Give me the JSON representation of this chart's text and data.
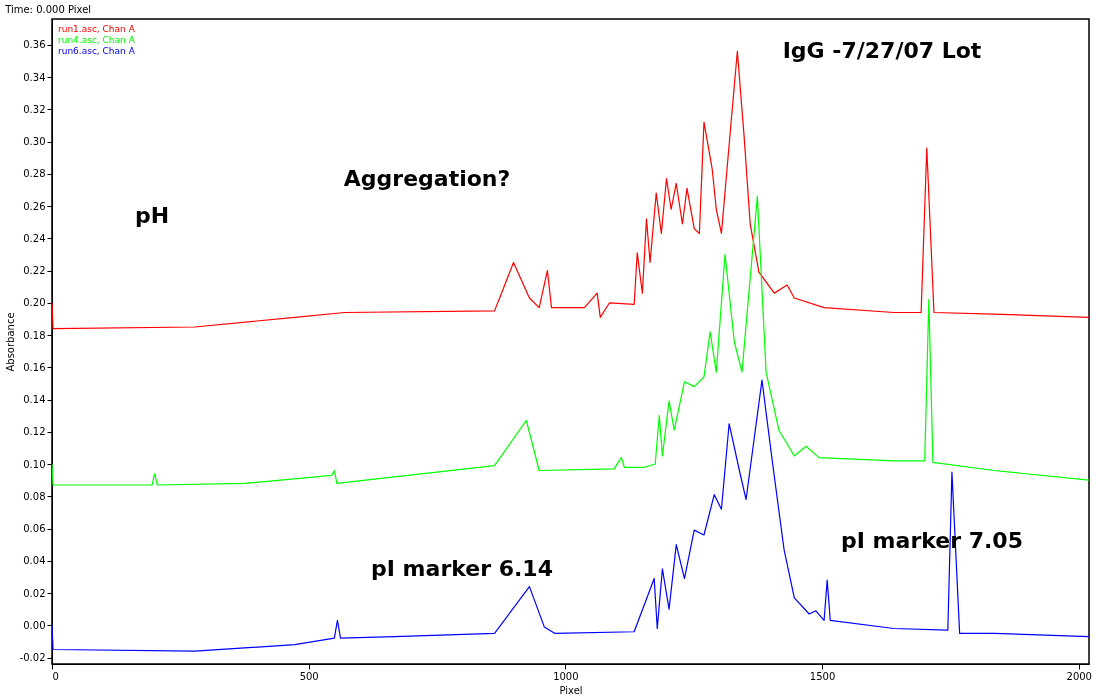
{
  "chart_data": {
    "type": "line",
    "title": "Time:  0.000  Pixel",
    "xlabel": "Pixel",
    "ylabel": "Absorbance",
    "xlim": [
      0,
      2020
    ],
    "ylim": [
      -0.024,
      0.376
    ],
    "xticks": [
      0,
      500,
      1000,
      1500,
      2000
    ],
    "yticks": [
      {
        "value": -0.02,
        "label": "-0.02"
      },
      {
        "value": 0,
        "label": "0.00"
      },
      {
        "value": 0.02,
        "label": "0.02"
      },
      {
        "value": 0.04,
        "label": "0.04"
      },
      {
        "value": 0.06,
        "label": "0.06"
      },
      {
        "value": 0.08,
        "label": "0.08"
      },
      {
        "value": 0.1,
        "label": "0.10"
      },
      {
        "value": 0.12,
        "label": "0.12"
      },
      {
        "value": 0.14,
        "label": "0.14"
      },
      {
        "value": 0.16,
        "label": "0.16"
      },
      {
        "value": 0.18,
        "label": "0.18"
      },
      {
        "value": 0.2,
        "label": "0.20"
      },
      {
        "value": 0.22,
        "label": "0.22"
      },
      {
        "value": 0.24,
        "label": "0.24"
      },
      {
        "value": 0.26,
        "label": "0.26"
      },
      {
        "value": 0.28,
        "label": "0.28"
      },
      {
        "value": 0.3,
        "label": "0.30"
      },
      {
        "value": 0.32,
        "label": "0.32"
      },
      {
        "value": 0.34,
        "label": "0.34"
      },
      {
        "value": 0.36,
        "label": "0.36"
      }
    ],
    "grid": false,
    "legend": "top left",
    "marker": "none",
    "line_style": "solid",
    "series": [
      {
        "name": "run1.asc, Chan A",
        "color": "#ff0000",
        "x": [
          0,
          2,
          278,
          473,
          570,
          862,
          872,
          899,
          930,
          949,
          965,
          973,
          1037,
          1062,
          1068,
          1086,
          1134,
          1140,
          1150,
          1158,
          1165,
          1177,
          1187,
          1197,
          1206,
          1216,
          1228,
          1237,
          1251,
          1261,
          1270,
          1286,
          1294,
          1304,
          1319,
          1335,
          1348,
          1360,
          1377,
          1407,
          1432,
          1446,
          1504,
          1640,
          1693,
          1704,
          1718,
          1835,
          2020
        ],
        "values": [
          0.2,
          0.184,
          0.185,
          0.191,
          0.194,
          0.195,
          0.203,
          0.225,
          0.203,
          0.197,
          0.22,
          0.197,
          0.197,
          0.206,
          0.191,
          0.2,
          0.199,
          0.231,
          0.206,
          0.252,
          0.225,
          0.268,
          0.243,
          0.277,
          0.258,
          0.274,
          0.249,
          0.271,
          0.246,
          0.243,
          0.312,
          0.283,
          0.258,
          0.243,
          0.298,
          0.356,
          0.304,
          0.249,
          0.219,
          0.206,
          0.211,
          0.203,
          0.197,
          0.194,
          0.194,
          0.296,
          0.194,
          0.193,
          0.191
        ]
      },
      {
        "name": "run4.asc, Chan A",
        "color": "#00ff00",
        "x": [
          0,
          2,
          195,
          200,
          205,
          375,
          545,
          550,
          555,
          862,
          924,
          949,
          1095,
          1109,
          1115,
          1154,
          1175,
          1183,
          1189,
          1202,
          1212,
          1232,
          1251,
          1270,
          1282,
          1294,
          1311,
          1329,
          1344,
          1374,
          1391,
          1416,
          1446,
          1469,
          1494,
          1640,
          1700,
          1708,
          1716,
          1835,
          2020
        ],
        "values": [
          0.1,
          0.087,
          0.087,
          0.094,
          0.087,
          0.088,
          0.093,
          0.096,
          0.088,
          0.099,
          0.127,
          0.096,
          0.097,
          0.104,
          0.098,
          0.098,
          0.1,
          0.13,
          0.105,
          0.139,
          0.121,
          0.151,
          0.148,
          0.154,
          0.182,
          0.157,
          0.23,
          0.176,
          0.157,
          0.266,
          0.157,
          0.121,
          0.105,
          0.111,
          0.104,
          0.102,
          0.102,
          0.202,
          0.101,
          0.096,
          0.09
        ]
      },
      {
        "name": "run6.asc, Chan A",
        "color": "#0000ff",
        "x": [
          0,
          2,
          278,
          473,
          550,
          556,
          562,
          667,
          862,
          930,
          959,
          979,
          1134,
          1173,
          1179,
          1189,
          1202,
          1216,
          1232,
          1251,
          1270,
          1290,
          1304,
          1319,
          1339,
          1352,
          1383,
          1403,
          1426,
          1446,
          1475,
          1488,
          1504,
          1510,
          1516,
          1640,
          1745,
          1753,
          1768,
          1835,
          2020
        ],
        "values": [
          0,
          -0.015,
          -0.016,
          -0.012,
          -0.008,
          0.003,
          -0.008,
          -0.007,
          -0.005,
          0.024,
          -0.001,
          -0.005,
          -0.004,
          0.029,
          -0.002,
          0.035,
          0.01,
          0.05,
          0.029,
          0.059,
          0.056,
          0.081,
          0.072,
          0.125,
          0.096,
          0.078,
          0.152,
          0.102,
          0.047,
          0.017,
          0.007,
          0.009,
          0.003,
          0.028,
          0.003,
          -0.002,
          -0.003,
          0.095,
          -0.005,
          -0.005,
          -0.007
        ]
      }
    ],
    "annotations": [
      "pH",
      "Aggregation?",
      "IgG -7/27/07 Lot",
      "pI marker 6.14",
      "pI marker 7.05"
    ]
  }
}
